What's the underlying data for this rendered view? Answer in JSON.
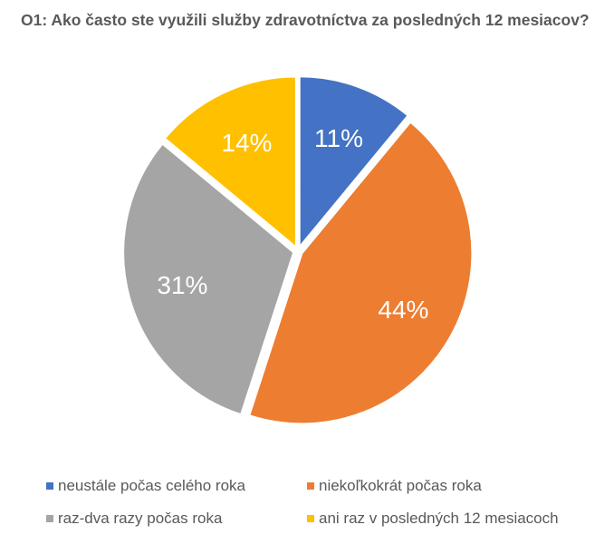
{
  "chart_data": {
    "type": "pie",
    "title": "O1: Ako často ste využili služby zdravotníctva za posledných 12 mesiacov?",
    "categories": [
      "neustále počas celého roka",
      "niekoľkokrát počas roka",
      "raz-dva razy počas roka",
      "ani raz v posledných 12 mesiacoch"
    ],
    "values": [
      11,
      44,
      31,
      14
    ],
    "labels": [
      "11%",
      "44%",
      "31%",
      "14%"
    ],
    "colors": [
      "#4472C4",
      "#ED7D31",
      "#A5A5A5",
      "#FFC000"
    ],
    "legend_position": "bottom"
  }
}
